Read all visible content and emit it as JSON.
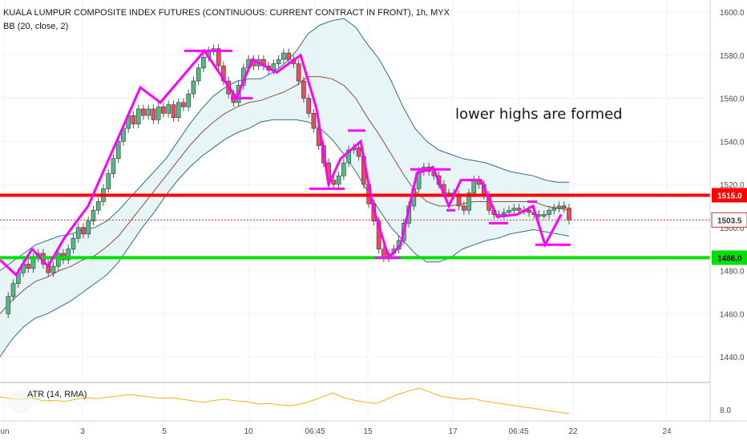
{
  "header": {
    "title": "KUALA LUMPUR COMPOSITE INDEX FUTURES (CONTINUOUS: CURRENT CONTRACT IN FRONT), 1h, MYX",
    "indicator": "BB (20, close, 2)"
  },
  "annotation": "lower highs are formed",
  "atr_label": "ATR (14, RMA)",
  "colors": {
    "up": "#26a69a",
    "down": "#ef5350",
    "candle_up_body": "#53b987",
    "candle_down_body": "#eb4d5c",
    "bb_fill": "#e1f3f4",
    "bb_band": "#2f6d87",
    "bb_basis": "#8d4f3a",
    "resistance": "#ff0000",
    "support": "#00e000",
    "drawing": "#ff00ff",
    "atr": "#f2b31b",
    "price_line": "#cc3333"
  },
  "chart_data": {
    "type": "candlestick",
    "title": "KUALA LUMPUR COMPOSITE INDEX FUTURES (CONTINUOUS: CURRENT CONTRACT IN FRONT), 1h, MYX",
    "ylim": [
      1430,
      1605
    ],
    "y_ticks": [
      "1600.0",
      "1580.0",
      "1560.0",
      "1540.0",
      "1520.0",
      "1500.0",
      "1480.0",
      "1460.0",
      "1440.0"
    ],
    "x_ticks": [
      "un",
      "3",
      "5",
      "10",
      "06:45",
      "15",
      "17",
      "06:45",
      "22",
      "24"
    ],
    "price_labels": {
      "resistance": "1515.0",
      "current": "1503.5",
      "support": "1486.0"
    },
    "horizontal_levels": [
      {
        "name": "resistance",
        "value": 1515
      },
      {
        "name": "support",
        "value": 1486
      }
    ],
    "current_price": 1503.5,
    "closes": [
      1460,
      1468,
      1474,
      1479,
      1483,
      1481,
      1486,
      1488,
      1483,
      1479,
      1482,
      1488,
      1485,
      1490,
      1495,
      1500,
      1497,
      1503,
      1508,
      1512,
      1518,
      1525,
      1532,
      1540,
      1546,
      1552,
      1548,
      1555,
      1552,
      1555,
      1550,
      1556,
      1553,
      1557,
      1551,
      1558,
      1556,
      1562,
      1568,
      1574,
      1579,
      1582,
      1583,
      1575,
      1568,
      1562,
      1558,
      1566,
      1574,
      1578,
      1575,
      1578,
      1575,
      1573,
      1576,
      1578,
      1581,
      1578,
      1576,
      1568,
      1560,
      1553,
      1546,
      1538,
      1530,
      1522,
      1520,
      1524,
      1530,
      1536,
      1537,
      1533,
      1520,
      1511,
      1503,
      1490,
      1486,
      1488,
      1490,
      1494,
      1502,
      1510,
      1518,
      1526,
      1528,
      1526,
      1524,
      1520,
      1516,
      1516,
      1515,
      1510,
      1508,
      1516,
      1522,
      1520,
      1515,
      1508,
      1506,
      1506,
      1507,
      1508,
      1509,
      1508,
      1508,
      1507,
      1506,
      1506,
      1506,
      1508,
      1509,
      1510,
      1509,
      1503.5
    ],
    "bb_upper": [
      1480,
      1484,
      1488,
      1492,
      1494,
      1496,
      1497,
      1499,
      1500,
      1503,
      1508,
      1514,
      1520,
      1526,
      1532,
      1540,
      1548,
      1555,
      1561,
      1565,
      1568,
      1569,
      1569,
      1572,
      1576,
      1582,
      1590,
      1594,
      1596,
      1597,
      1593,
      1585,
      1578,
      1568,
      1556,
      1546,
      1540,
      1536,
      1534,
      1532,
      1531,
      1530,
      1528,
      1526,
      1525,
      1524,
      1522,
      1521,
      1521
    ],
    "bb_lower": [
      1440,
      1448,
      1454,
      1458,
      1460,
      1463,
      1466,
      1470,
      1474,
      1478,
      1484,
      1492,
      1500,
      1507,
      1515,
      1522,
      1528,
      1533,
      1537,
      1541,
      1544,
      1546,
      1549,
      1550,
      1550,
      1550,
      1549,
      1546,
      1541,
      1534,
      1526,
      1517,
      1508,
      1500,
      1494,
      1488,
      1484,
      1484,
      1486,
      1490,
      1492,
      1494,
      1495,
      1497,
      1498,
      1499,
      1498,
      1497,
      1496
    ],
    "bb_basis": [
      1460,
      1466,
      1471,
      1475,
      1477,
      1480,
      1482,
      1485,
      1487,
      1491,
      1496,
      1503,
      1510,
      1517,
      1524,
      1531,
      1538,
      1544,
      1549,
      1553,
      1556,
      1558,
      1559,
      1561,
      1563,
      1566,
      1570,
      1570,
      1569,
      1566,
      1560,
      1551,
      1543,
      1534,
      1525,
      1517,
      1512,
      1510,
      1510,
      1511,
      1512,
      1512,
      1512,
      1512,
      1512,
      1512,
      1510,
      1509,
      1508
    ],
    "atr": [
      0.62,
      0.58,
      0.55,
      0.6,
      0.5,
      0.52,
      0.48,
      0.55,
      0.6,
      0.57,
      0.62,
      0.65,
      0.7,
      0.66,
      0.62,
      0.58,
      0.6,
      0.55,
      0.5,
      0.46,
      0.52,
      0.55,
      0.5,
      0.48,
      0.4,
      0.42,
      0.38,
      0.35,
      0.4,
      0.5,
      0.62,
      0.75,
      0.6,
      0.52,
      0.46,
      0.42,
      0.55,
      0.7,
      0.8,
      0.9,
      0.78,
      0.65,
      0.6,
      0.55,
      0.58,
      0.5,
      0.45,
      0.4,
      0.35,
      0.3,
      0.25,
      0.2,
      0.15,
      0.1
    ],
    "atr_ylim": [
      0,
      1
    ],
    "atr_ticks": [
      "8.0"
    ]
  }
}
